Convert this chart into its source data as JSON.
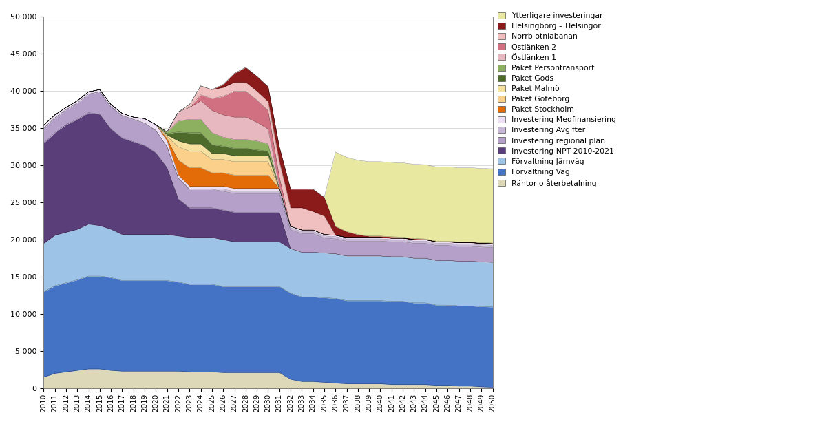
{
  "years": [
    2010,
    2011,
    2012,
    2013,
    2014,
    2015,
    2016,
    2017,
    2018,
    2019,
    2020,
    2021,
    2022,
    2023,
    2024,
    2025,
    2026,
    2027,
    2028,
    2029,
    2030,
    2031,
    2032,
    2033,
    2034,
    2035,
    2036,
    2037,
    2038,
    2039,
    2040,
    2041,
    2042,
    2043,
    2044,
    2045,
    2046,
    2047,
    2048,
    2049,
    2050
  ],
  "series": [
    {
      "label": "Räntor o återbetalning",
      "color": "#ddd9b8",
      "values": [
        1500,
        2000,
        2200,
        2400,
        2600,
        2600,
        2400,
        2300,
        2300,
        2300,
        2300,
        2300,
        2300,
        2200,
        2200,
        2200,
        2100,
        2100,
        2100,
        2100,
        2100,
        2100,
        1200,
        900,
        900,
        800,
        700,
        600,
        600,
        600,
        600,
        500,
        500,
        500,
        500,
        400,
        400,
        300,
        300,
        200,
        150
      ]
    },
    {
      "label": "Förvaltning Väg",
      "color": "#4472c4",
      "values": [
        11500,
        11800,
        12000,
        12200,
        12500,
        12500,
        12500,
        12200,
        12200,
        12200,
        12200,
        12200,
        12000,
        11800,
        11800,
        11800,
        11600,
        11600,
        11600,
        11600,
        11600,
        11600,
        11600,
        11400,
        11400,
        11400,
        11400,
        11200,
        11200,
        11200,
        11200,
        11200,
        11200,
        11000,
        11000,
        10800,
        10800,
        10800,
        10800,
        10800,
        10800
      ]
    },
    {
      "label": "Förvaltning Järnväg",
      "color": "#9dc3e6",
      "values": [
        6500,
        6800,
        6800,
        6800,
        7000,
        6800,
        6500,
        6200,
        6200,
        6200,
        6200,
        6200,
        6200,
        6300,
        6300,
        6300,
        6300,
        6000,
        6000,
        6000,
        6000,
        6000,
        6000,
        6000,
        6000,
        6000,
        6000,
        6000,
        6000,
        6000,
        6000,
        6000,
        6000,
        6000,
        6000,
        6000,
        6000,
        6000,
        6000,
        6000,
        6000
      ]
    },
    {
      "label": "Investering NPT 2010-2021",
      "color": "#5a3e7a",
      "values": [
        13500,
        13800,
        14500,
        14800,
        15000,
        15000,
        13500,
        13000,
        12500,
        12000,
        11000,
        9000,
        5000,
        4000,
        4000,
        4000,
        4000,
        4000,
        4000,
        4000,
        4000,
        4000,
        0,
        0,
        0,
        0,
        0,
        0,
        0,
        0,
        0,
        0,
        0,
        0,
        0,
        0,
        0,
        0,
        0,
        0,
        0
      ]
    },
    {
      "label": "Investering regional plan",
      "color": "#b4a0c8",
      "values": [
        2000,
        2000,
        2000,
        2200,
        2500,
        3000,
        3000,
        3000,
        3000,
        3000,
        3000,
        2800,
        2800,
        2500,
        2500,
        2500,
        2500,
        2500,
        2500,
        2500,
        2500,
        2500,
        2500,
        2500,
        2500,
        2000,
        2000,
        2000,
        2000,
        2000,
        2000,
        2000,
        2000,
        2000,
        2000,
        2000,
        2000,
        2000,
        2000,
        2000,
        2000
      ]
    },
    {
      "label": "Investering Avgifter",
      "color": "#c9b8d8",
      "values": [
        0,
        0,
        0,
        0,
        0,
        0,
        0,
        0,
        0,
        0,
        0,
        0,
        0,
        0,
        0,
        0,
        300,
        300,
        300,
        300,
        300,
        300,
        300,
        300,
        300,
        300,
        300,
        300,
        300,
        300,
        300,
        300,
        300,
        300,
        300,
        300,
        300,
        300,
        300,
        300,
        300
      ]
    },
    {
      "label": "Investering Medfinansiering",
      "color": "#ede0f5",
      "values": [
        400,
        400,
        300,
        300,
        300,
        300,
        300,
        300,
        300,
        600,
        800,
        800,
        400,
        400,
        400,
        400,
        400,
        400,
        400,
        400,
        400,
        400,
        200,
        200,
        200,
        200,
        200,
        200,
        200,
        200,
        200,
        200,
        200,
        200,
        200,
        200,
        200,
        200,
        200,
        200,
        200
      ]
    },
    {
      "label": "Paket Stockholm",
      "color": "#e36c09",
      "values": [
        0,
        0,
        0,
        0,
        0,
        0,
        0,
        0,
        0,
        0,
        0,
        300,
        2000,
        2500,
        2500,
        1800,
        1800,
        1800,
        1800,
        1800,
        1800,
        0,
        0,
        0,
        0,
        0,
        0,
        0,
        0,
        0,
        0,
        0,
        0,
        0,
        0,
        0,
        0,
        0,
        0,
        0,
        0
      ]
    },
    {
      "label": "Paket Göteborg",
      "color": "#fad08a",
      "values": [
        0,
        0,
        0,
        0,
        0,
        0,
        0,
        0,
        0,
        0,
        0,
        300,
        1800,
        2200,
        2200,
        1800,
        1800,
        1800,
        1800,
        1800,
        1800,
        0,
        0,
        0,
        0,
        0,
        0,
        0,
        0,
        0,
        0,
        0,
        0,
        0,
        0,
        0,
        0,
        0,
        0,
        0,
        0
      ]
    },
    {
      "label": "Paket Malmö",
      "color": "#f5e0a0",
      "values": [
        0,
        0,
        0,
        0,
        0,
        0,
        0,
        0,
        0,
        0,
        0,
        200,
        800,
        1000,
        1000,
        800,
        800,
        800,
        800,
        800,
        800,
        0,
        0,
        0,
        0,
        0,
        0,
        0,
        0,
        0,
        0,
        0,
        0,
        0,
        0,
        0,
        0,
        0,
        0,
        0,
        0
      ]
    },
    {
      "label": "Paket Gods",
      "color": "#4e6b2b",
      "values": [
        0,
        0,
        0,
        0,
        0,
        0,
        0,
        0,
        0,
        0,
        0,
        200,
        1200,
        1500,
        1500,
        1200,
        1000,
        1000,
        1000,
        800,
        600,
        0,
        0,
        0,
        0,
        0,
        0,
        0,
        0,
        0,
        0,
        0,
        0,
        0,
        0,
        0,
        0,
        0,
        0,
        0,
        0
      ]
    },
    {
      "label": "Paket Persontransport",
      "color": "#8db060",
      "values": [
        0,
        0,
        0,
        0,
        0,
        0,
        0,
        0,
        0,
        0,
        0,
        200,
        1500,
        1800,
        1800,
        1600,
        1200,
        1200,
        1200,
        1200,
        1000,
        0,
        0,
        0,
        0,
        0,
        0,
        0,
        0,
        0,
        0,
        0,
        0,
        0,
        0,
        0,
        0,
        0,
        0,
        0,
        0
      ]
    },
    {
      "label": "Östlänken 1",
      "color": "#e8b8c0",
      "values": [
        0,
        0,
        0,
        0,
        0,
        0,
        0,
        0,
        0,
        0,
        0,
        0,
        1200,
        1600,
        2500,
        3000,
        3000,
        3000,
        3000,
        2500,
        2000,
        400,
        0,
        0,
        0,
        0,
        0,
        0,
        0,
        0,
        0,
        0,
        0,
        0,
        0,
        0,
        0,
        0,
        0,
        0,
        0
      ]
    },
    {
      "label": "Östlänken 2",
      "color": "#d07080",
      "values": [
        0,
        0,
        0,
        0,
        0,
        0,
        0,
        0,
        0,
        0,
        0,
        0,
        0,
        0,
        800,
        1600,
        2500,
        3500,
        3500,
        3000,
        2500,
        1200,
        0,
        0,
        0,
        0,
        0,
        0,
        0,
        0,
        0,
        0,
        0,
        0,
        0,
        0,
        0,
        0,
        0,
        0,
        0
      ]
    },
    {
      "label": "Norrb otniabanan",
      "color": "#f0c0c0",
      "values": [
        0,
        0,
        0,
        0,
        0,
        0,
        0,
        0,
        0,
        0,
        0,
        0,
        0,
        400,
        1200,
        1200,
        1200,
        1200,
        1200,
        1200,
        1200,
        2000,
        2500,
        3000,
        2500,
        2500,
        0,
        0,
        0,
        0,
        0,
        0,
        0,
        0,
        0,
        0,
        0,
        0,
        0,
        0,
        0
      ]
    },
    {
      "label": "Helsingborg – Helsingör",
      "color": "#8b1a1a",
      "values": [
        0,
        0,
        0,
        0,
        0,
        0,
        0,
        0,
        0,
        0,
        0,
        0,
        0,
        0,
        0,
        0,
        400,
        1200,
        2000,
        2000,
        2000,
        2000,
        2500,
        2500,
        3000,
        2500,
        1200,
        800,
        400,
        200,
        200,
        200,
        150,
        150,
        100,
        100,
        100,
        100,
        100,
        100,
        100
      ]
    },
    {
      "label": "Ytterligare investeringar",
      "color": "#e8e8a0",
      "values": [
        0,
        0,
        0,
        0,
        0,
        0,
        0,
        0,
        0,
        0,
        0,
        0,
        0,
        0,
        0,
        0,
        0,
        0,
        0,
        0,
        0,
        0,
        0,
        0,
        0,
        0,
        10000,
        10000,
        10000,
        10000,
        10000,
        10000,
        10000,
        10000,
        10000,
        10000,
        10000,
        10000,
        10000,
        10000,
        10000
      ]
    }
  ],
  "ylim": [
    0,
    50000
  ],
  "yticks": [
    0,
    5000,
    10000,
    15000,
    20000,
    25000,
    30000,
    35000,
    40000,
    45000,
    50000
  ],
  "background_color": "#ffffff"
}
